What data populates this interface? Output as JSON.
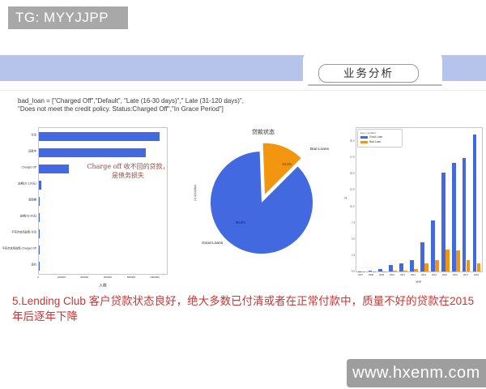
{
  "header": {
    "tg_label": "TG: MYYJJPP"
  },
  "banner": {
    "title": "业务分析"
  },
  "code": {
    "line1": "bad_loan = [\"Charged Off\",\"Default\", \"Late (16-30 days)\",\" Late (31-120 days)\",",
    "line2": "\"Does not meet the credit policy. Status:Charged Off\",\"In Grace Period\"]"
  },
  "caption": "5.Lending Club 客户贷款状态良好，绝大多数已付清或者在正常付款中，质量不好的贷款在2015年后逐年下降",
  "watermark": "www.hxenm.com",
  "colors": {
    "band_blue": "#b6c3eb",
    "chart_blue": "#4269e0",
    "chart_orange": "#f2960f",
    "caption_red": "#cc3333",
    "tag_gray": "#a8a8a8"
  },
  "chart_data": [
    {
      "type": "bar",
      "orientation": "horizontal",
      "categories": [
        "付清",
        "还款中",
        "Charged Off",
        "逾期(31-120天)",
        "宽限期",
        "逾期(16-30天)",
        "不符合信用政策-付清",
        "不符合信用政策-Charged Off",
        "违约"
      ],
      "values": [
        1040000,
        920000,
        260000,
        22000,
        9000,
        3700,
        2000,
        800,
        30
      ],
      "xticks": [
        0,
        200000,
        400000,
        600000,
        800000,
        1000000
      ],
      "xlim": [
        0,
        1100000
      ],
      "xlabel": "人数",
      "ylabel": "",
      "bar_color": "#4269e0",
      "grid": false,
      "annotation": "Charge off 收不回的贷款，是债务损失",
      "annotation_line1": "Charge off 收不回的贷款，",
      "annotation_line2": "是债务损失"
    },
    {
      "type": "pie",
      "title": "贷款状态",
      "labels": [
        "Good Loans",
        "Bad Loans"
      ],
      "values": [
        86.9,
        13.1
      ],
      "pct_labels": [
        "86.9%",
        "13.1%"
      ],
      "colors": [
        "#4269e0",
        "#f2960f"
      ],
      "explode": [
        0,
        0.1
      ],
      "start_angle_deg": 45,
      "ylabel": "贷款状态占比"
    },
    {
      "type": "bar",
      "categories": [
        "2007",
        "2008",
        "2009",
        "2010",
        "2011",
        "2012",
        "2013",
        "2014",
        "2015",
        "2016",
        "2017",
        "2018"
      ],
      "series": [
        {
          "name": "Good Loan",
          "color": "#4269e0",
          "values": [
            0.05,
            0.1,
            0.35,
            1.0,
            1.3,
            1.8,
            4.5,
            7.8,
            15.2,
            16.7,
            17.4,
            21.0
          ]
        },
        {
          "name": "Bad Loan",
          "color": "#f2960f",
          "values": [
            0.0,
            0.02,
            0.05,
            0.1,
            0.15,
            0.35,
            1.3,
            1.7,
            3.3,
            3.2,
            1.8,
            1.2
          ]
        }
      ],
      "legend_title": "loan_condition",
      "legend_position": "upper left",
      "yticks": [
        0.0,
        2.5,
        5.0,
        7.5,
        10.0,
        12.5,
        15.0,
        17.5,
        20.0
      ],
      "ylim": [
        0,
        22
      ],
      "ylabel": "%",
      "xlabel": "year",
      "grid": false
    }
  ]
}
